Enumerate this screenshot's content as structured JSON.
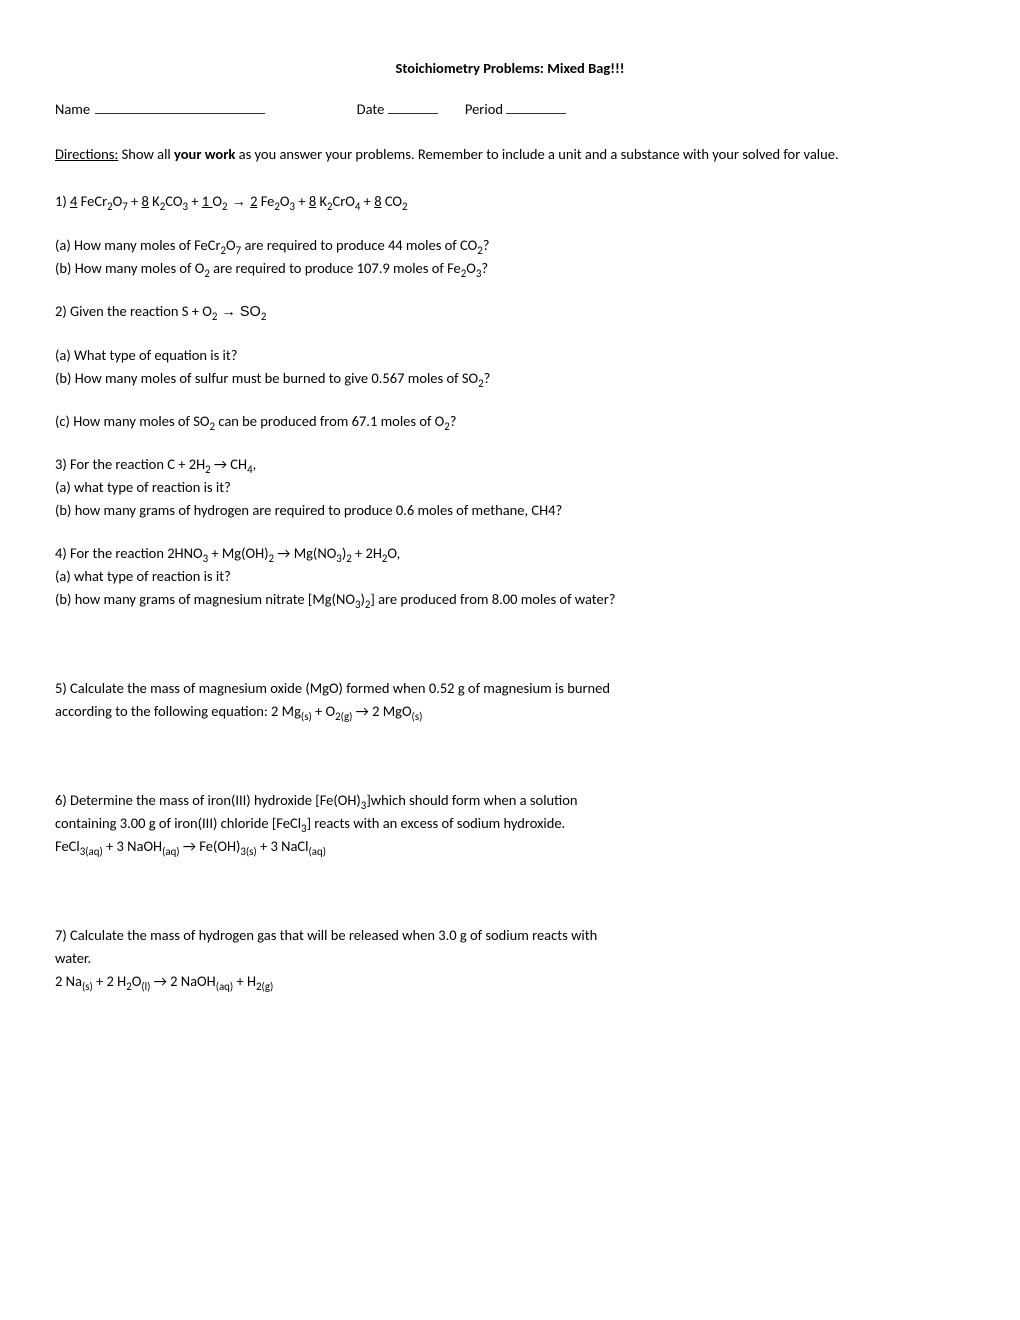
{
  "title": "Stoichiometry Problems:  Mixed Bag!!!",
  "header": {
    "name_label": "Name",
    "date_label": "Date",
    "period_label": "Period"
  },
  "directions": {
    "label": "Directions:",
    "text_before": "  Show all ",
    "bold": "your work",
    "text_after": " as you answer your problems.  Remember to include a unit and a substance with your solved for value."
  },
  "problems": {
    "p1": {
      "eq_pre": "1) ",
      "eq_parts": [
        "4",
        " FeCr",
        "2",
        "O",
        "7",
        " + ",
        "8",
        " K",
        "2",
        "CO",
        "3",
        " + ",
        "1 ",
        "O",
        "2",
        "  →  ",
        "2",
        " Fe",
        "2",
        "O",
        "3",
        " + ",
        "8",
        " K",
        "2",
        "CrO",
        "4",
        " + ",
        "8",
        " CO",
        "2"
      ],
      "a_pre": "(a) How many moles of FeCr",
      "a_mid1": "O",
      "a_mid2": " are required to produce 44 moles of CO",
      "a_end": "?",
      "b_pre": "(b) How many moles of O",
      "b_mid": " are required to produce 107.9 moles of Fe",
      "b_mid2": "O",
      "b_end": "?"
    },
    "p2": {
      "eq_pre": "2) Given the reaction S + O",
      "eq_mid": "  →  SO",
      "a": "(a)  What type of equation is it?",
      "b_pre": "(b) How many moles of sulfur must be burned to give 0.567 moles of SO",
      "b_end": "?",
      "c_pre": "(c) How many moles of SO",
      "c_mid": " can be produced from 67.1 moles of O",
      "c_end": "?"
    },
    "p3": {
      "eq_pre": "3) For the reaction C + 2H",
      "eq_mid": " → CH",
      "eq_end": ",",
      "a": "(a) what type of reaction is it?",
      "b": "(b) how many grams of hydrogen are required to produce 0.6 moles of methane, CH4?"
    },
    "p4": {
      "eq_pre": "4) For the reaction 2HNO",
      "eq_mid1": " + Mg(OH)",
      "eq_mid2": " → Mg(NO",
      "eq_mid3": ")",
      "eq_mid4": " + 2H",
      "eq_end": "O,",
      "a": "(a) what type of reaction is it?",
      "b_pre": "(b) how many grams of magnesium nitrate [Mg(NO",
      "b_mid": ")",
      "b_end": "] are produced from 8.00 moles of water?"
    },
    "p5": {
      "line1": "5) Calculate the mass of magnesium oxide (MgO) formed when 0.52 g of magnesium is burned",
      "line2_pre": "according to the following equation:  2 Mg",
      "line2_mid1": " + O",
      "line2_mid2": " → 2 MgO"
    },
    "p6": {
      "line1_pre": "6) Determine the mass of iron(III) hydroxide [Fe(OH)",
      "line1_end": "]which should form when a solution",
      "line2_pre": "containing 3.00 g of iron(III) chloride [FeCl",
      "line2_end": "] reacts with an excess of sodium hydroxide.",
      "eq_pre": "FeCl",
      "eq_mid1": " + 3 NaOH",
      "eq_mid2": " → Fe(OH)",
      "eq_mid3": " + 3 NaCl"
    },
    "p7": {
      "line1": "7) Calculate the mass of hydrogen gas that will be released when 3.0 g of sodium reacts with",
      "line2": "water.",
      "eq_pre": "2 Na",
      "eq_mid1": " + 2 H",
      "eq_mid2": "O",
      "eq_mid3": " → 2 NaOH",
      "eq_mid4": " + H"
    }
  },
  "sub": {
    "2": "2",
    "3": "3",
    "4": "4",
    "7": "7",
    "s": "(s)",
    "g": "(g)",
    "l": "(l)",
    "aq": "(aq)",
    "2g": "2(g)",
    "3s": "3(s)",
    "3aq": "3(aq)"
  }
}
